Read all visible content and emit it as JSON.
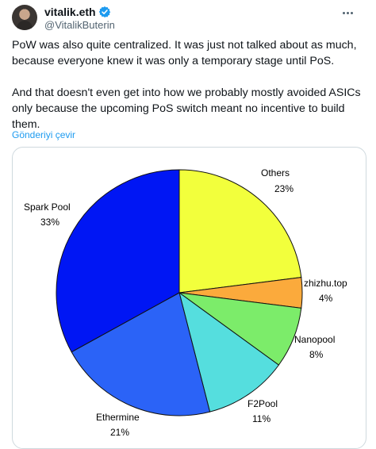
{
  "author": {
    "display_name": "vitalik.eth",
    "handle": "@VitalikButerin",
    "verified": true
  },
  "icons": {
    "verified": "verified-badge-icon",
    "more": "more-options-icon"
  },
  "tweet": {
    "paragraph_1": "PoW was also quite centralized. It was just not talked about as much, because everyone knew it was only a temporary stage until PoS.",
    "paragraph_2": "And that doesn't even get into how we probably mostly avoided ASICs only because the upcoming PoS switch meant no incentive to build them.",
    "translate_label": "Gönderiyi çevir"
  },
  "colors": {
    "link_blue": "#1d9bf0",
    "secondary_text": "#536471",
    "border": "#cfd9de"
  },
  "chart_data": {
    "type": "pie",
    "title": "",
    "slices": [
      {
        "name": "Others",
        "label": "23%",
        "value": 23,
        "color": "#f2ff3c"
      },
      {
        "name": "zhizhu.top",
        "label": "4%",
        "value": 4,
        "color": "#fbaa3c"
      },
      {
        "name": "Nanopool",
        "label": "8%",
        "value": 8,
        "color": "#7cec6a"
      },
      {
        "name": "F2Pool",
        "label": "11%",
        "value": 11,
        "color": "#55dede"
      },
      {
        "name": "Ethermine",
        "label": "21%",
        "value": 21,
        "color": "#2b63f7"
      },
      {
        "name": "Spark Pool",
        "label": "33%",
        "value": 33,
        "color": "#0016f4"
      }
    ],
    "start": "12 o'clock",
    "direction": "clockwise",
    "legend": "none"
  }
}
